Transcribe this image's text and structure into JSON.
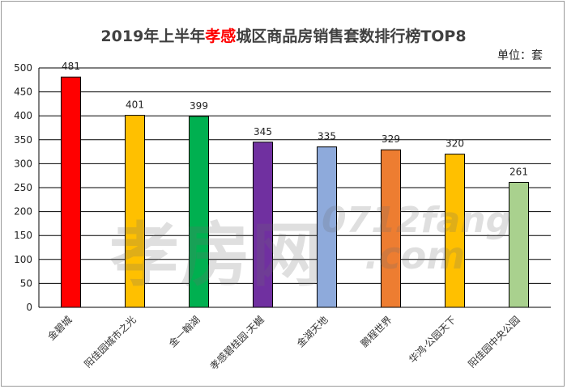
{
  "chart_data": {
    "type": "bar",
    "title_pre": "2019年上半年",
    "title_highlight": "孝感",
    "title_post": "城区商品房销售套数排行榜TOP8",
    "unit_label": "单位：套",
    "categories": [
      "金碧城",
      "阳佳园城市之光",
      "金一翰湖",
      "孝感碧桂园·天樾",
      "金湖天地",
      "鹏程世界",
      "华鸿·公园天下",
      "阳佳园中央公园"
    ],
    "values": [
      481,
      401,
      399,
      345,
      335,
      329,
      320,
      261
    ],
    "colors": [
      "#ff0000",
      "#ffc000",
      "#00b050",
      "#7030a0",
      "#8eaadb",
      "#ed7d31",
      "#ffc000",
      "#a9d18e"
    ],
    "ylim": [
      0,
      500
    ],
    "yticks": [
      0,
      50,
      100,
      150,
      200,
      250,
      300,
      350,
      400,
      450,
      500
    ],
    "xlabel": "",
    "ylabel": "",
    "grid": true
  },
  "watermark": {
    "cn": "孝房网",
    "en1": "0712fang",
    "en2": ".com"
  }
}
